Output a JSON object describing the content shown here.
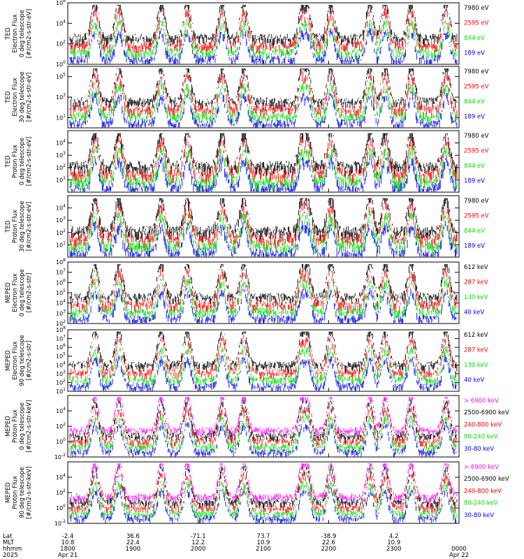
{
  "chart_data": [
    {
      "type": "line",
      "ylabel": [
        "TED",
        "Electron Flux",
        "0 deg telescope",
        "[#/cm2-s-str-eV]"
      ],
      "ylog": true,
      "ylim_exp": [
        0,
        6
      ],
      "tick_exps": [
        0,
        2,
        4,
        6
      ],
      "series": [
        {
          "name": "7980 eV",
          "color": "#000000"
        },
        {
          "name": "2595 eV",
          "color": "#ff0000"
        },
        {
          "name": "844 eV",
          "color": "#00dd00"
        },
        {
          "name": "189 eV",
          "color": "#0000ff"
        }
      ]
    },
    {
      "type": "line",
      "ylabel": [
        "TED",
        "Electron Flux",
        "30 deg telescope",
        "[#/cm2-s-str-eV]"
      ],
      "ylog": true,
      "ylim_exp": [
        0,
        6
      ],
      "tick_exps": [
        1,
        3,
        5
      ],
      "series": [
        {
          "name": "7980 eV",
          "color": "#000000"
        },
        {
          "name": "2595 eV",
          "color": "#ff0000"
        },
        {
          "name": "844 eV",
          "color": "#00dd00"
        },
        {
          "name": "189 eV",
          "color": "#0000ff"
        }
      ]
    },
    {
      "type": "line",
      "ylabel": [
        "TED",
        "Proton Flux",
        "0 deg telescope",
        "[#/cm2-s-str-eV]"
      ],
      "ylog": true,
      "ylim_exp": [
        0,
        5
      ],
      "tick_exps": [
        1,
        2,
        3,
        4
      ],
      "series": [
        {
          "name": "7980 eV",
          "color": "#000000"
        },
        {
          "name": "2595 eV",
          "color": "#ff0000"
        },
        {
          "name": "844 eV",
          "color": "#00dd00"
        },
        {
          "name": "189 eV",
          "color": "#0000ff"
        }
      ]
    },
    {
      "type": "line",
      "ylabel": [
        "TED",
        "Proton Flux",
        "30 deg telescope",
        "[#/cm2-s-str-eV]"
      ],
      "ylog": true,
      "ylim_exp": [
        0,
        5
      ],
      "tick_exps": [
        1,
        2,
        3,
        4
      ],
      "series": [
        {
          "name": "7980 eV",
          "color": "#000000"
        },
        {
          "name": "2595 eV",
          "color": "#ff0000"
        },
        {
          "name": "844 eV",
          "color": "#00dd00"
        },
        {
          "name": "189 eV",
          "color": "#0000ff"
        }
      ]
    },
    {
      "type": "line",
      "ylabel": [
        "MEPED",
        "Electron Flux",
        "0 deg telescope",
        "[#/cm2-s-str]"
      ],
      "ylog": true,
      "ylim_exp": [
        2,
        8
      ],
      "tick_exps": [
        2,
        3,
        4,
        5,
        6,
        7,
        8
      ],
      "series": [
        {
          "name": "612 keV",
          "color": "#000000"
        },
        {
          "name": "287 keV",
          "color": "#ff0000"
        },
        {
          "name": "130 keV",
          "color": "#00dd00"
        },
        {
          "name": "40 keV",
          "color": "#0000ff"
        }
      ]
    },
    {
      "type": "line",
      "ylabel": [
        "MEPED",
        "Electron Flux",
        "90 deg telescope",
        "[#/cm2-s-str]"
      ],
      "ylog": true,
      "ylim_exp": [
        1,
        8
      ],
      "tick_exps": [
        1,
        2,
        3,
        4,
        5,
        6,
        7,
        8
      ],
      "series": [
        {
          "name": "612 keV",
          "color": "#000000"
        },
        {
          "name": "287 keV",
          "color": "#ff0000"
        },
        {
          "name": "130 keV",
          "color": "#00dd00"
        },
        {
          "name": "40 keV",
          "color": "#0000ff"
        }
      ]
    },
    {
      "type": "line",
      "ylabel": [
        "MEPED",
        "Proton Flux",
        "0 deg telescope",
        "[#/cm2-s-str-keV]"
      ],
      "ylog": true,
      "ylim_exp": [
        -2,
        6
      ],
      "tick_exps": [
        -2,
        0,
        2,
        4
      ],
      "series": [
        {
          "name": "> 6900 keV",
          "color": "#ff00ff"
        },
        {
          "name": "2500-6900 keV",
          "color": "#000000"
        },
        {
          "name": "240-800 keV",
          "color": "#ff0000"
        },
        {
          "name": "80-240 keV",
          "color": "#00dd00"
        },
        {
          "name": "30-80 keV",
          "color": "#0000ff"
        }
      ]
    },
    {
      "type": "line",
      "ylabel": [
        "MEPED",
        "Proton Flux",
        "90 deg telescope",
        "[#/cm2-s-str-keV]"
      ],
      "ylog": true,
      "ylim_exp": [
        -2,
        6
      ],
      "tick_exps": [
        -2,
        0,
        2,
        4
      ],
      "series": [
        {
          "name": "> 6900 keV",
          "color": "#ff00ff"
        },
        {
          "name": "2500-6900 keV",
          "color": "#000000"
        },
        {
          "name": "240-800 keV",
          "color": "#ff0000"
        },
        {
          "name": "80-240 keV",
          "color": "#00dd00"
        },
        {
          "name": "30-80 keV",
          "color": "#0000ff"
        }
      ]
    }
  ],
  "xaxis": {
    "row_labels": [
      "Lat",
      "MLT",
      "hhmm",
      "2025"
    ],
    "ticks": [
      {
        "lat": "-2.4",
        "mlt": "10.8",
        "hhmm": "1800",
        "date": "Apr 21"
      },
      {
        "lat": "36.6",
        "mlt": "22.4",
        "hhmm": "1900",
        "date": ""
      },
      {
        "lat": "-71.1",
        "mlt": "12.2",
        "hhmm": "2000",
        "date": ""
      },
      {
        "lat": "73.7",
        "mlt": "10.9",
        "hhmm": "2100",
        "date": ""
      },
      {
        "lat": "-38.9",
        "mlt": "22.6",
        "hhmm": "2200",
        "date": ""
      },
      {
        "lat": "4.2",
        "mlt": "10.9",
        "hhmm": "2300",
        "date": ""
      },
      {
        "lat": "",
        "mlt": "",
        "hhmm": "0000",
        "date": "Apr 22"
      }
    ],
    "minutes_range": [
      1080,
      1440
    ]
  }
}
